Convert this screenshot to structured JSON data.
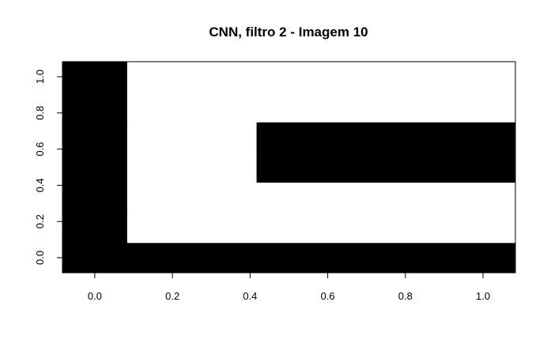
{
  "chart_data": {
    "type": "heatmap",
    "title": "CNN, filtro 2 - Imagem 10",
    "xlabel": "",
    "ylabel": "",
    "rows": 7,
    "cols": 7,
    "xlim": [
      -0.0833,
      1.0833
    ],
    "ylim": [
      -0.0833,
      1.0833
    ],
    "x_ticks": [
      0.0,
      0.2,
      0.4,
      0.6,
      0.8,
      1.0
    ],
    "x_tick_labels": [
      "0.0",
      "0.2",
      "0.4",
      "0.6",
      "0.8",
      "1.0"
    ],
    "y_ticks": [
      0.0,
      0.2,
      0.4,
      0.6,
      0.8,
      1.0
    ],
    "y_tick_labels": [
      "0.0",
      "0.2",
      "0.4",
      "0.6",
      "0.8",
      "1.0"
    ],
    "cell_x_centers": [
      0.0,
      0.1667,
      0.3333,
      0.5,
      0.6667,
      0.8333,
      1.0
    ],
    "cell_y_centers": [
      0.0,
      0.1667,
      0.3333,
      0.5,
      0.6667,
      0.8333,
      1.0
    ],
    "values_bottom_to_top": [
      [
        1,
        1,
        1,
        1,
        1,
        1,
        1
      ],
      [
        1,
        0,
        0,
        0,
        0,
        0,
        0
      ],
      [
        1,
        0,
        0,
        0,
        0,
        0,
        0
      ],
      [
        1,
        0,
        0,
        1,
        1,
        1,
        1
      ],
      [
        1,
        0,
        0,
        1,
        1,
        1,
        1
      ],
      [
        1,
        0,
        0,
        0,
        0,
        0,
        0
      ],
      [
        1,
        0,
        0,
        0,
        0,
        0,
        0
      ]
    ],
    "colors": {
      "one": "#000000",
      "zero": "#ffffff",
      "axis": "#000000"
    },
    "grid": false,
    "legend": "none"
  }
}
